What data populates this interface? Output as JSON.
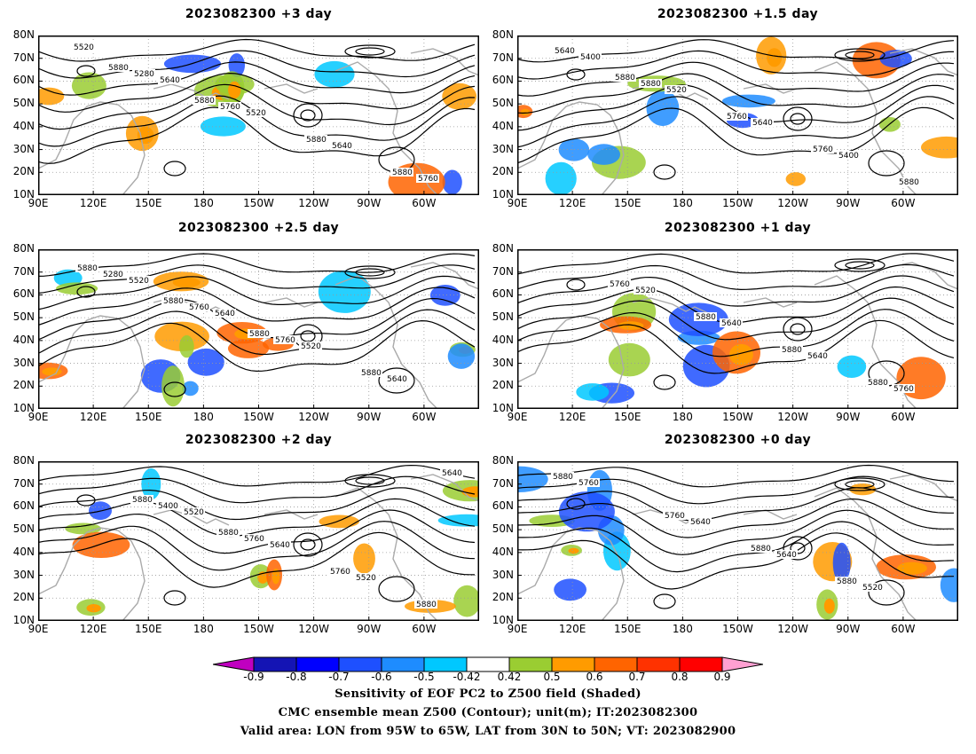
{
  "panels": [
    {
      "title": "2023082300 +3 day",
      "labels": [
        "5520",
        "5640",
        "5520",
        "5640",
        "5760",
        "5280",
        "5760",
        "5880",
        "5880",
        "5880",
        "5880"
      ]
    },
    {
      "title": "2023082300 +1.5 day",
      "labels": [
        "5400",
        "5520",
        "5640",
        "5400",
        "5640",
        "5880",
        "5760",
        "5760",
        "5880",
        "5880"
      ]
    },
    {
      "title": "2023082300 +2.5 day",
      "labels": [
        "5520",
        "5640",
        "5520",
        "5640",
        "5280",
        "5760",
        "5760",
        "5880",
        "5880",
        "5880",
        "5880"
      ]
    },
    {
      "title": "2023082300 +1 day",
      "labels": [
        "5520",
        "5640",
        "5640",
        "5760",
        "5760",
        "5880",
        "5880",
        "5880"
      ]
    },
    {
      "title": "2023082300 +2 day",
      "labels": [
        "5520",
        "5640",
        "5520",
        "5640",
        "5400",
        "5760",
        "5760",
        "5880",
        "5880",
        "5880"
      ]
    },
    {
      "title": "2023082300 +0 day",
      "labels": [
        "5640",
        "5640",
        "5520",
        "5760",
        "5760",
        "5880",
        "5880",
        "5880"
      ]
    }
  ],
  "lat_ticks": [
    "80N",
    "70N",
    "60N",
    "50N",
    "40N",
    "30N",
    "20N",
    "10N"
  ],
  "lon_ticks": [
    "90E",
    "120E",
    "150E",
    "180",
    "150W",
    "120W",
    "90W",
    "60W"
  ],
  "colorbar": {
    "ticks": [
      "-0.9",
      "-0.8",
      "-0.7",
      "-0.6",
      "-0.5",
      "-0.42",
      "0.42",
      "0.5",
      "0.6",
      "0.7",
      "0.8",
      "0.9"
    ],
    "colors": [
      "#c000c0",
      "#1414b4",
      "#0000ff",
      "#1e50ff",
      "#1e8cff",
      "#00c8ff",
      "#ffffff",
      "#9acd32",
      "#ff9b00",
      "#ff6400",
      "#ff3200",
      "#ff0000",
      "#ffa0d2"
    ]
  },
  "caption": {
    "line1": "Sensitivity of EOF PC2 to Z500 field (Shaded)",
    "line2": "CMC ensemble mean Z500 (Contour); unit(m); IT:2023082300",
    "line3": "Valid area: LON from 95W to 65W, LAT from 30N to 50N; VT: 2023082900"
  }
}
